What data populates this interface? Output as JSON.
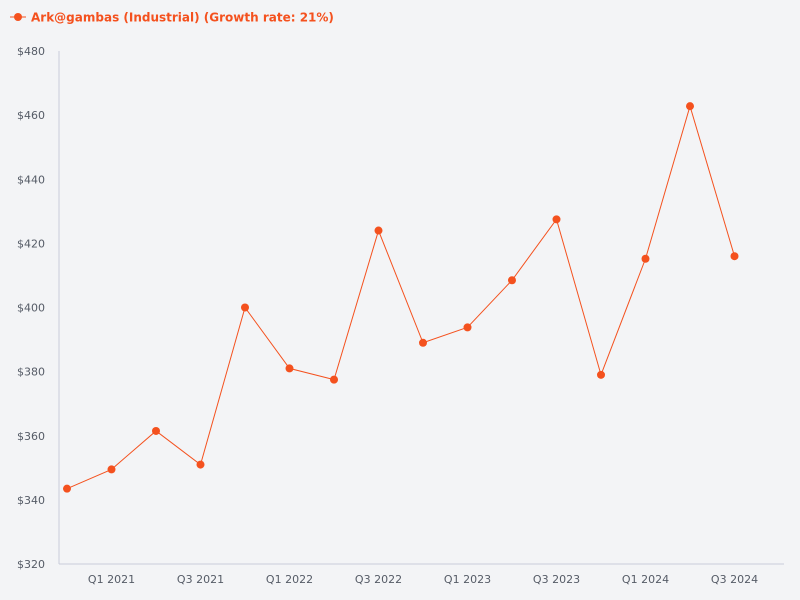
{
  "colors": {
    "background": "#f3f4f6",
    "series": "#f4511e",
    "axis": "#c8ccda",
    "tick_text": "#555b66"
  },
  "chart_data": {
    "type": "line",
    "title": "",
    "xlabel": "",
    "ylabel": "",
    "ylim": [
      320,
      480
    ],
    "y_ticks": [
      320,
      340,
      360,
      380,
      400,
      420,
      440,
      460,
      480
    ],
    "y_tick_labels": [
      "$320",
      "$340",
      "$360",
      "$380",
      "$400",
      "$420",
      "$440",
      "$460",
      "$480"
    ],
    "x_tick_labels": [
      "Q1 2021",
      "Q3 2021",
      "Q1 2022",
      "Q3 2022",
      "Q1 2023",
      "Q3 2023",
      "Q1 2024",
      "Q3 2024"
    ],
    "x_tick_indices": [
      1,
      3,
      5,
      7,
      9,
      11,
      13,
      15
    ],
    "legend": {
      "label": "Ark@gambas (Industrial) (Growth rate: 21%)",
      "position": "top-left"
    },
    "series": [
      {
        "name": "Ark@gambas (Industrial) (Growth rate: 21%)",
        "values": [
          343.5,
          349.5,
          361.5,
          351,
          400,
          381,
          377.5,
          424,
          389,
          393.8,
          408.5,
          427.5,
          379,
          415.2,
          462.8,
          416
        ]
      }
    ]
  }
}
